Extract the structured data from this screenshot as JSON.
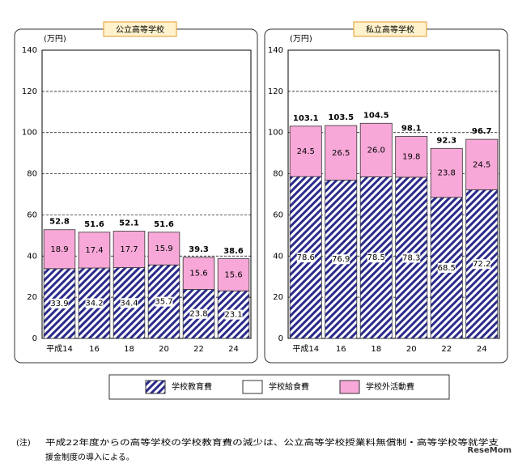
{
  "chart_data": {
    "type": "bar",
    "stacked": true,
    "y_label": "(万円)",
    "categories": [
      "平成14",
      "16",
      "18",
      "20",
      "22",
      "24"
    ],
    "ylim": [
      0,
      140
    ],
    "yticks": [
      0,
      20,
      40,
      60,
      80,
      100,
      120,
      140
    ],
    "grid": true,
    "legend": [
      {
        "name": "学校教育費",
        "color": "#2b2b8c",
        "pattern": "hatch"
      },
      {
        "name": "学校給食費",
        "color": "#ffffff"
      },
      {
        "name": "学校外活動費",
        "color": "#f7a8d8"
      }
    ],
    "panels": [
      {
        "title": "公立高等学校",
        "series": [
          {
            "values": [
              33.9,
              34.2,
              34.4,
              35.7,
              23.8,
              23.1
            ]
          },
          {
            "values": [
              0,
              0,
              0,
              0,
              0,
              0
            ]
          },
          {
            "values": [
              18.9,
              17.4,
              17.7,
              15.9,
              15.6,
              15.6
            ]
          }
        ],
        "totals": [
          52.8,
          51.6,
          52.1,
          51.6,
          39.3,
          38.6
        ]
      },
      {
        "title": "私立高等学校",
        "series": [
          {
            "values": [
              78.6,
              76.9,
              78.5,
              78.3,
              68.5,
              72.2
            ]
          },
          {
            "values": [
              0,
              0,
              0,
              0,
              0,
              0
            ]
          },
          {
            "values": [
              24.5,
              26.5,
              26.0,
              19.8,
              23.8,
              24.5
            ],
            "value_labels": [
              "24.5",
              "26.5",
              "26.0",
              "19.8",
              "23.8",
              "24.5"
            ]
          }
        ],
        "totals": [
          103.1,
          103.5,
          104.5,
          98.1,
          92.3,
          96.7
        ]
      }
    ]
  },
  "note": [
    "(注)",
    "平成22年度からの高等学校の学校教育費の減少は、公立高等学校授業料無償制・高等学校等就学支",
    "援金制度の導入による。"
  ],
  "watermark": "ReseMom"
}
